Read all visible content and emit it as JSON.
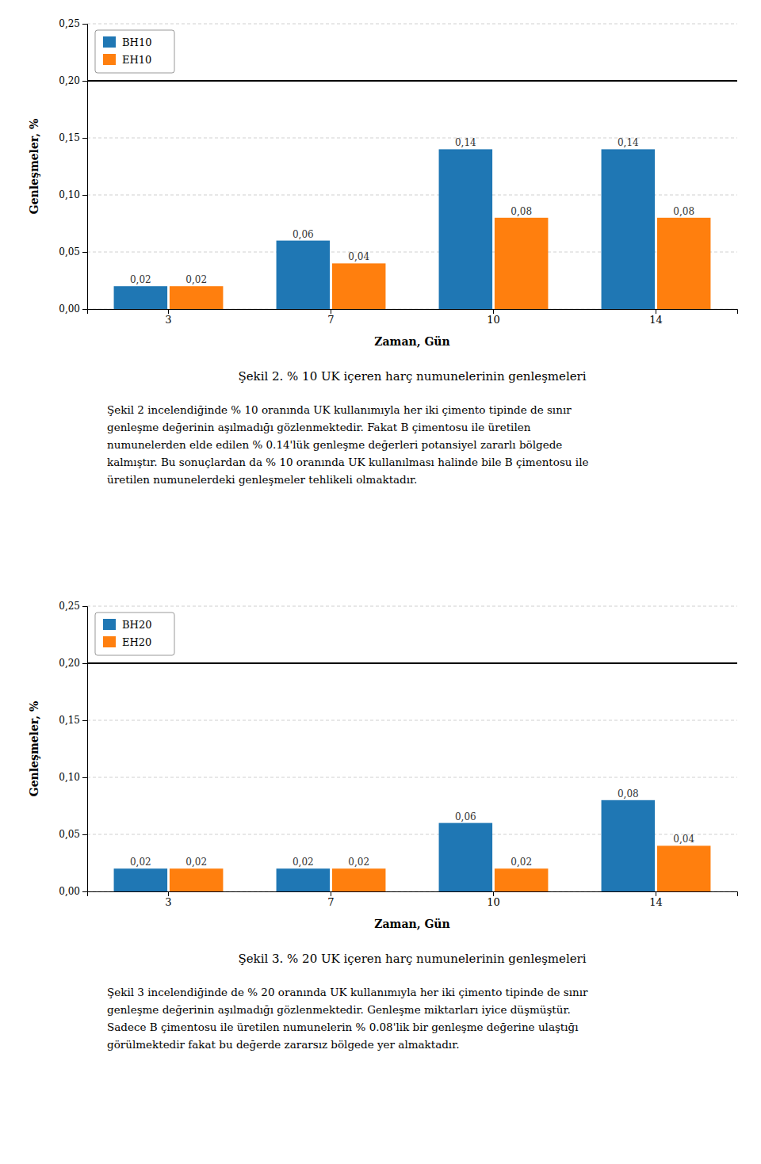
{
  "chart_data": [
    {
      "type": "bar",
      "title": "Şekil 2. % 10 UK içeren harç numunelerinin genleşmeleri",
      "xlabel": "Zaman, Gün",
      "ylabel": "Genleşmeler, %",
      "categories": [
        "3",
        "7",
        "10",
        "14"
      ],
      "series": [
        {
          "name": "BH10",
          "values": [
            0.02,
            0.06,
            0.14,
            0.14
          ],
          "value_labels": [
            "0,02",
            "0,06",
            "0,14",
            "0,14"
          ]
        },
        {
          "name": "EH10",
          "values": [
            0.02,
            0.04,
            0.08,
            0.08
          ],
          "value_labels": [
            "0,02",
            "0,04",
            "0,08",
            "0,08"
          ]
        }
      ],
      "ylim": [
        0.0,
        0.25
      ],
      "yticks": [
        {
          "value": 0.0,
          "label": "0,00"
        },
        {
          "value": 0.05,
          "label": "0,05"
        },
        {
          "value": 0.1,
          "label": "0,10"
        },
        {
          "value": 0.15,
          "label": "0,15"
        },
        {
          "value": 0.2,
          "label": "0,20"
        },
        {
          "value": 0.25,
          "label": "0,25"
        }
      ],
      "hline": 0.2,
      "grid": true,
      "legend": "upper left",
      "data_labels": true,
      "annotations": [
        "Şekil 2 incelendiğinde % 10 oranında UK kullanımıyla her iki çimento tipinde de sınır",
        "genleşme değerinin aşılmadığı gözlenmektedir. Fakat B çimentosu ile üretilen",
        "numunelerden elde edilen % 0.14'lük genleşme değerleri potansiyel zararlı bölgede",
        "kalmıştır. Bu sonuçlardan da % 10 oranında UK kullanılması halinde bile B çimentosu ile",
        "üretilen numunelerdeki genleşmeler tehlikeli olmaktadır."
      ]
    },
    {
      "type": "bar",
      "title": "Şekil 3. % 20 UK içeren harç numunelerinin genleşmeleri",
      "xlabel": "Zaman, Gün",
      "ylabel": "Genleşmeler, %",
      "categories": [
        "3",
        "7",
        "10",
        "14"
      ],
      "series": [
        {
          "name": "BH20",
          "values": [
            0.02,
            0.02,
            0.06,
            0.08
          ],
          "value_labels": [
            "0,02",
            "0,02",
            "0,06",
            "0,08"
          ]
        },
        {
          "name": "EH20",
          "values": [
            0.02,
            0.02,
            0.02,
            0.04
          ],
          "value_labels": [
            "0,02",
            "0,02",
            "0,02",
            "0,04"
          ]
        }
      ],
      "ylim": [
        0.0,
        0.25
      ],
      "yticks": [
        {
          "value": 0.0,
          "label": "0,00"
        },
        {
          "value": 0.05,
          "label": "0,05"
        },
        {
          "value": 0.1,
          "label": "0,10"
        },
        {
          "value": 0.15,
          "label": "0,15"
        },
        {
          "value": 0.2,
          "label": "0,20"
        },
        {
          "value": 0.25,
          "label": "0,25"
        }
      ],
      "hline": 0.2,
      "grid": true,
      "legend": "upper left",
      "data_labels": true,
      "annotations": [
        "Şekil 3 incelendiğinde de % 20 oranında UK kullanımıyla her iki çimento tipinde de sınır",
        "genleşme değerinin aşılmadığı gözlenmektedir. Genleşme miktarları iyice düşmüştür.",
        "Sadece B çimentosu ile üretilen numunelerin % 0.08'lik bir genleşme değerine ulaştığı",
        "görülmektedir fakat bu değerde zararsız bölgede yer almaktadır."
      ]
    }
  ]
}
